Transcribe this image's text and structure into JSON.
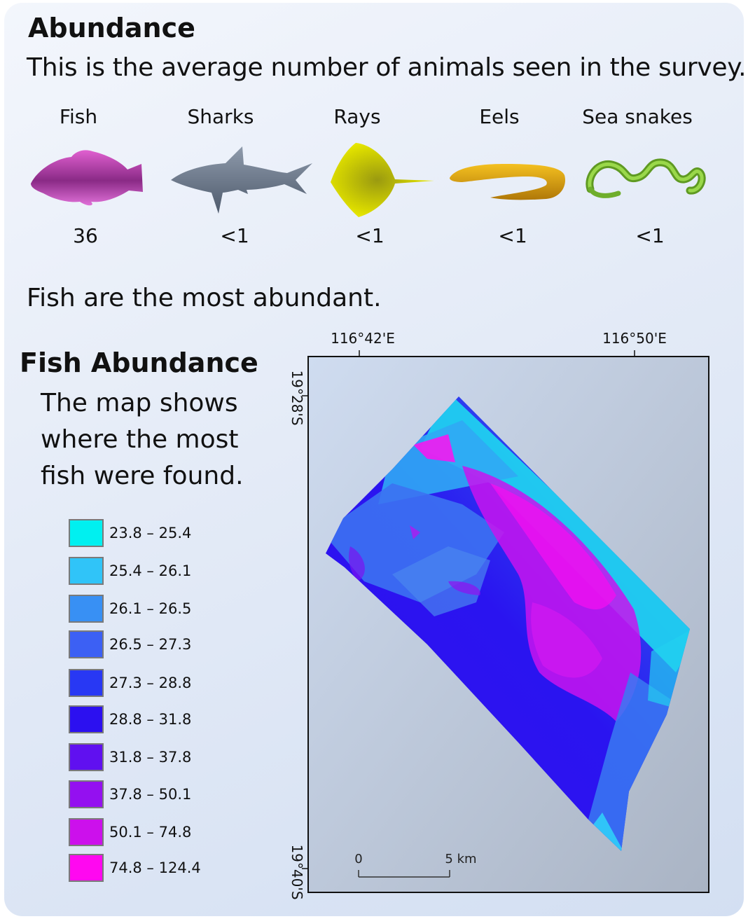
{
  "header": {
    "title": "Abundance",
    "subtitle": "This is the average number of animals seen in the survey."
  },
  "animals": [
    {
      "label": "Fish",
      "count": "36",
      "icon": "fish-icon",
      "color": "#b23aa6"
    },
    {
      "label": "Sharks",
      "count": "<1",
      "icon": "shark-icon",
      "color": "#6b7a8e"
    },
    {
      "label": "Rays",
      "count": "<1",
      "icon": "ray-icon",
      "color": "#e0e000"
    },
    {
      "label": "Eels",
      "count": "<1",
      "icon": "eel-icon",
      "color": "#e0a010"
    },
    {
      "label": "Sea snakes",
      "count": "<1",
      "icon": "sea-snake-icon",
      "color": "#7bbf2a"
    }
  ],
  "statement": "Fish are the most abundant.",
  "fish_abundance": {
    "title": "Fish Abundance",
    "description": "The map shows where the most fish were found."
  },
  "legend": [
    {
      "label": "23.8 – 25.4",
      "color": "#00f0f0"
    },
    {
      "label": "25.4 – 26.1",
      "color": "#30c4f8"
    },
    {
      "label": "26.1 – 26.5",
      "color": "#3890f4"
    },
    {
      "label": "26.5 – 27.3",
      "color": "#3c60f4"
    },
    {
      "label": "27.3 – 28.8",
      "color": "#2838f4"
    },
    {
      "label": "28.8 – 31.8",
      "color": "#2c10f0"
    },
    {
      "label": "31.8 – 37.8",
      "color": "#6010f0"
    },
    {
      "label": "37.8 – 50.1",
      "color": "#9410f0"
    },
    {
      "label": "50.1 – 74.8",
      "color": "#cc10ec"
    },
    {
      "label": "74.8 – 124.4",
      "color": "#ff08f0"
    }
  ],
  "map": {
    "lon_labels": [
      "116°42'E",
      "116°50'E"
    ],
    "lat_labels": [
      "19°28'S",
      "19°40'S"
    ],
    "scale_bar": {
      "start": "0",
      "end": "5 km"
    }
  }
}
